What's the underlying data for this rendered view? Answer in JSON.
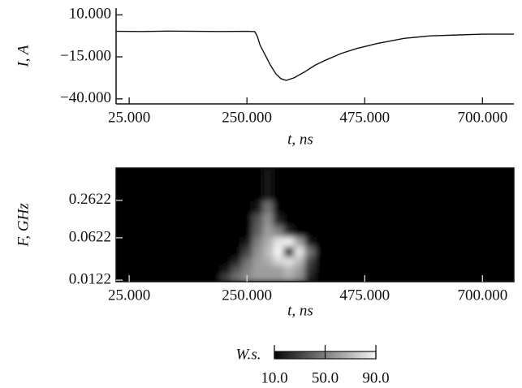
{
  "chart_data": [
    {
      "type": "line",
      "ylabel": "I, A",
      "xlabel": "t, ns",
      "color": "#111111",
      "x": [
        0,
        50,
        100,
        150,
        200,
        250,
        265,
        270,
        275,
        285,
        295,
        305,
        315,
        325,
        340,
        360,
        380,
        400,
        430,
        460,
        500,
        550,
        600,
        650,
        700,
        760
      ],
      "values": [
        0.2,
        0.1,
        0.3,
        0.2,
        0.1,
        0.2,
        0,
        -3,
        -8,
        -14,
        -20,
        -25,
        -28,
        -29,
        -27.5,
        -24,
        -20,
        -17,
        -13,
        -10,
        -7,
        -4,
        -2.5,
        -2,
        -1.5,
        -1.5
      ],
      "xlim": [
        0,
        760
      ],
      "ylim": [
        -43,
        14
      ],
      "xticks": [
        {
          "value": 25,
          "label": "25.000"
        },
        {
          "value": 250,
          "label": "250.000"
        },
        {
          "value": 475,
          "label": "475.000"
        },
        {
          "value": 700,
          "label": "700.000"
        }
      ],
      "yticks": [
        {
          "value": 10,
          "label": "10.000"
        },
        {
          "value": -15,
          "label": "−15.000"
        },
        {
          "value": -40,
          "label": "−40.000"
        }
      ]
    },
    {
      "type": "heatmap",
      "ylabel": "F, GHz",
      "xlabel": "t, ns",
      "yscale": "log",
      "x_edges": [
        0,
        160,
        200,
        220,
        240,
        260,
        280,
        300,
        320,
        340,
        360,
        380,
        400,
        760
      ],
      "y_edges": [
        0.0115,
        0.016,
        0.022,
        0.03,
        0.045,
        0.065,
        0.1,
        0.16,
        0.26,
        0.91
      ],
      "z": [
        [
          10,
          10,
          30,
          45,
          55,
          60,
          60,
          60,
          65,
          55,
          20,
          10,
          10
        ],
        [
          10,
          10,
          15,
          35,
          50,
          60,
          60,
          60,
          70,
          60,
          25,
          10,
          10
        ],
        [
          10,
          10,
          10,
          20,
          45,
          60,
          65,
          80,
          85,
          70,
          30,
          10,
          10
        ],
        [
          10,
          10,
          10,
          10,
          30,
          55,
          70,
          90,
          20,
          85,
          45,
          10,
          10
        ],
        [
          10,
          10,
          10,
          10,
          15,
          50,
          65,
          85,
          90,
          60,
          15,
          10,
          10
        ],
        [
          10,
          10,
          10,
          10,
          10,
          40,
          60,
          50,
          20,
          10,
          10,
          10,
          10
        ],
        [
          10,
          10,
          10,
          10,
          10,
          35,
          55,
          20,
          10,
          10,
          10,
          10,
          10
        ],
        [
          10,
          10,
          10,
          10,
          10,
          15,
          45,
          10,
          10,
          10,
          10,
          10,
          10
        ],
        [
          10,
          10,
          10,
          10,
          10,
          10,
          15,
          10,
          10,
          10,
          10,
          10,
          10
        ]
      ],
      "xlim": [
        0,
        760
      ],
      "ylim": [
        0.0115,
        0.91
      ],
      "xticks": [
        {
          "value": 25,
          "label": "25.000"
        },
        {
          "value": 250,
          "label": "250.000"
        },
        {
          "value": 475,
          "label": "475.000"
        },
        {
          "value": 700,
          "label": "700.000"
        }
      ],
      "yticks": [
        0.2622,
        0.0622,
        0.0122
      ],
      "colors": [
        "#050505",
        "#808080",
        "#f4f4f4"
      ],
      "zlabel": "W.s.",
      "zlim": [
        10,
        90
      ],
      "zticks": [
        {
          "value": 10,
          "label": "10.0"
        },
        {
          "value": 50,
          "label": "50.0"
        },
        {
          "value": 90,
          "label": "90.0"
        }
      ]
    }
  ]
}
